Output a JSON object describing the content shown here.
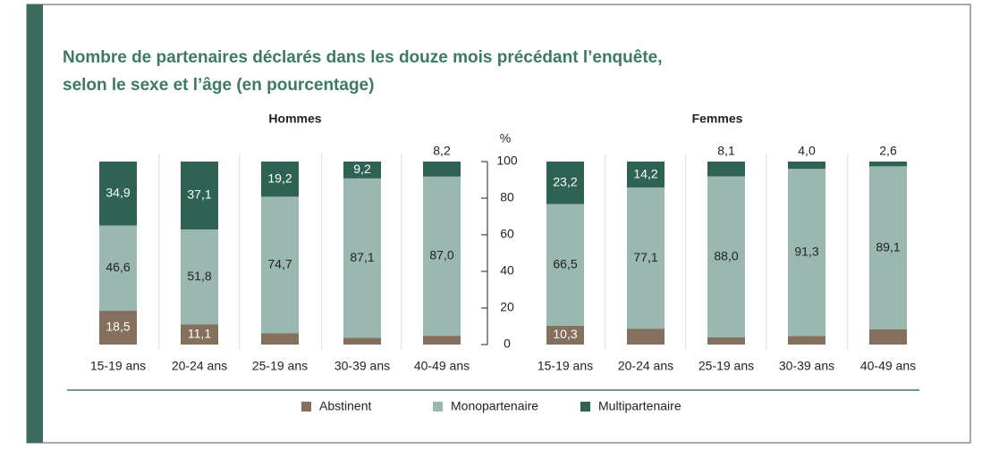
{
  "chart_data": {
    "type": "bar",
    "stacked": true,
    "title": [
      "Nombre de partenaires déclarés dans les douze mois précédant l’enquête,",
      "selon le sexe et l’âge (en pourcentage)"
    ],
    "panels": [
      "Hommes",
      "Femmes"
    ],
    "categories": [
      "15-19 ans",
      "20-24 ans",
      "25-19 ans",
      "30-39 ans",
      "40-49 ans"
    ],
    "ylabel": "%",
    "ylim": [
      0,
      100
    ],
    "yticks": [
      0,
      20,
      40,
      60,
      80,
      100
    ],
    "series": [
      {
        "name": "Abstinent",
        "color": "#85705e",
        "values": [
          [
            18.5,
            11.1,
            6.1,
            3.7,
            4.8
          ],
          [
            10.3,
            8.7,
            3.9,
            4.7,
            8.3
          ]
        ],
        "value_labels": [
          [
            "18,5",
            "11,1",
            "6,1",
            "3,7",
            "4,8"
          ],
          [
            "10,3",
            "8,7",
            "3,9",
            "4,7",
            "8,3"
          ]
        ]
      },
      {
        "name": "Monopartenaire",
        "color": "#9ab8b0",
        "values": [
          [
            46.6,
            51.8,
            74.7,
            87.1,
            87.0
          ],
          [
            66.5,
            77.1,
            88.0,
            91.3,
            89.1
          ]
        ],
        "value_labels": [
          [
            "46,6",
            "51,8",
            "74,7",
            "87,1",
            "87,0"
          ],
          [
            "66,5",
            "77,1",
            "88,0",
            "91,3",
            "89,1"
          ]
        ]
      },
      {
        "name": "Multipartenaire",
        "color": "#2e6353",
        "values": [
          [
            34.9,
            37.1,
            19.2,
            9.2,
            8.2
          ],
          [
            23.2,
            14.2,
            8.1,
            4.0,
            2.6
          ]
        ],
        "value_labels": [
          [
            "34,9",
            "37,1",
            "19,2",
            "9,2",
            "8,2"
          ],
          [
            "23,2",
            "14,2",
            "8,1",
            "4,0",
            "2,6"
          ]
        ]
      }
    ]
  }
}
